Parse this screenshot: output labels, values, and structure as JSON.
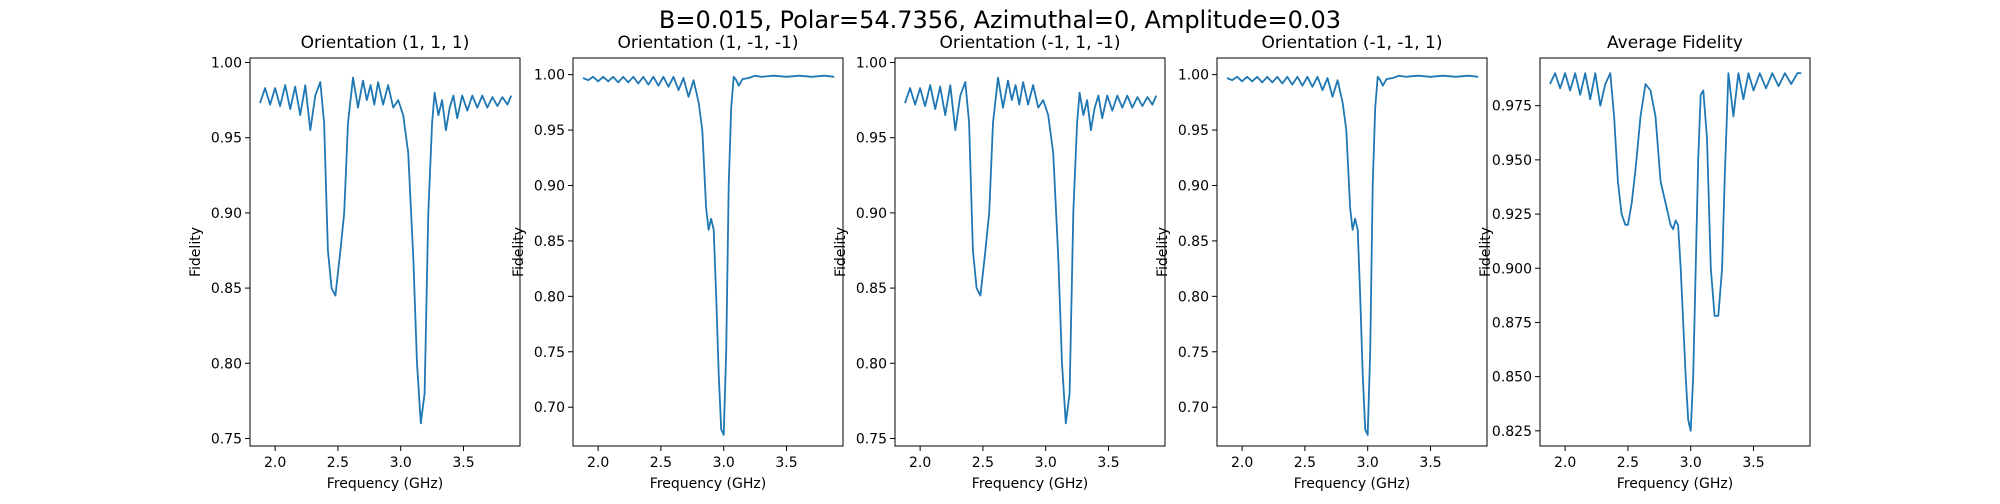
{
  "figure": {
    "suptitle": "B=0.015, Polar=54.7356, Azimuthal=0, Amplitude=0.03",
    "line_color": "#1f77b4"
  },
  "chart_data": [
    {
      "type": "line",
      "title": "Orientation (1, 1, 1)",
      "xlabel": "Frequency (GHz)",
      "ylabel": "Fidelity",
      "xlim": [
        1.8,
        3.95
      ],
      "ylim": [
        0.745,
        1.003
      ],
      "xticks": [
        "2.0",
        "2.5",
        "3.0",
        "3.5"
      ],
      "yticks": [
        "0.75",
        "0.80",
        "0.85",
        "0.90",
        "0.95",
        "1.00"
      ],
      "x": [
        1.88,
        1.92,
        1.96,
        2.0,
        2.04,
        2.08,
        2.12,
        2.16,
        2.2,
        2.24,
        2.28,
        2.32,
        2.36,
        2.39,
        2.42,
        2.45,
        2.48,
        2.5,
        2.52,
        2.55,
        2.58,
        2.62,
        2.66,
        2.7,
        2.73,
        2.76,
        2.79,
        2.82,
        2.86,
        2.9,
        2.94,
        2.98,
        3.02,
        3.06,
        3.1,
        3.13,
        3.16,
        3.19,
        3.22,
        3.25,
        3.27,
        3.3,
        3.33,
        3.36,
        3.39,
        3.42,
        3.45,
        3.49,
        3.53,
        3.57,
        3.61,
        3.65,
        3.69,
        3.73,
        3.77,
        3.81,
        3.85,
        3.88
      ],
      "series": [
        {
          "values": [
            0.973,
            0.983,
            0.972,
            0.983,
            0.971,
            0.985,
            0.969,
            0.984,
            0.965,
            0.985,
            0.955,
            0.978,
            0.987,
            0.96,
            0.875,
            0.85,
            0.845,
            0.86,
            0.875,
            0.9,
            0.96,
            0.99,
            0.97,
            0.988,
            0.975,
            0.985,
            0.972,
            0.987,
            0.972,
            0.985,
            0.97,
            0.975,
            0.965,
            0.94,
            0.87,
            0.8,
            0.76,
            0.78,
            0.9,
            0.96,
            0.98,
            0.965,
            0.975,
            0.955,
            0.97,
            0.978,
            0.963,
            0.978,
            0.968,
            0.978,
            0.97,
            0.978,
            0.97,
            0.977,
            0.971,
            0.977,
            0.972,
            0.978
          ]
        }
      ]
    },
    {
      "type": "line",
      "title": "Orientation (1, -1, -1)",
      "xlabel": "Frequency (GHz)",
      "ylabel": "Fidelity",
      "xlim": [
        1.8,
        3.95
      ],
      "ylim": [
        0.665,
        1.015
      ],
      "xticks": [
        "2.0",
        "2.5",
        "3.0",
        "3.5"
      ],
      "yticks": [
        "0.70",
        "0.75",
        "0.80",
        "0.85",
        "0.90",
        "0.95",
        "1.00"
      ],
      "x": [
        1.88,
        1.92,
        1.96,
        2.0,
        2.04,
        2.08,
        2.12,
        2.16,
        2.2,
        2.24,
        2.28,
        2.32,
        2.36,
        2.4,
        2.44,
        2.48,
        2.52,
        2.56,
        2.6,
        2.64,
        2.68,
        2.72,
        2.76,
        2.8,
        2.83,
        2.86,
        2.88,
        2.9,
        2.92,
        2.94,
        2.96,
        2.98,
        3.0,
        3.02,
        3.04,
        3.06,
        3.08,
        3.1,
        3.12,
        3.15,
        3.2,
        3.25,
        3.3,
        3.4,
        3.5,
        3.6,
        3.7,
        3.8,
        3.88
      ],
      "series": [
        {
          "values": [
            0.997,
            0.995,
            0.998,
            0.994,
            0.998,
            0.994,
            0.998,
            0.993,
            0.998,
            0.993,
            0.998,
            0.992,
            0.998,
            0.991,
            0.998,
            0.99,
            0.998,
            0.989,
            0.998,
            0.986,
            0.997,
            0.98,
            0.995,
            0.975,
            0.95,
            0.88,
            0.86,
            0.87,
            0.86,
            0.8,
            0.73,
            0.68,
            0.675,
            0.75,
            0.9,
            0.97,
            0.998,
            0.995,
            0.99,
            0.996,
            0.997,
            0.999,
            0.998,
            0.999,
            0.998,
            0.999,
            0.998,
            0.999,
            0.998
          ]
        }
      ]
    },
    {
      "type": "line",
      "title": "Orientation (-1, 1, -1)",
      "xlabel": "Frequency (GHz)",
      "ylabel": "Fidelity",
      "xlim": [
        1.8,
        3.95
      ],
      "ylim": [
        0.745,
        1.003
      ],
      "xticks": [
        "2.0",
        "2.5",
        "3.0",
        "3.5"
      ],
      "yticks": [
        "0.75",
        "0.80",
        "0.85",
        "0.90",
        "0.95",
        "1.00"
      ],
      "x": [
        1.88,
        1.92,
        1.96,
        2.0,
        2.04,
        2.08,
        2.12,
        2.16,
        2.2,
        2.24,
        2.28,
        2.32,
        2.36,
        2.39,
        2.42,
        2.45,
        2.48,
        2.5,
        2.52,
        2.55,
        2.58,
        2.62,
        2.66,
        2.7,
        2.73,
        2.76,
        2.79,
        2.82,
        2.86,
        2.9,
        2.94,
        2.98,
        3.02,
        3.06,
        3.1,
        3.13,
        3.16,
        3.19,
        3.22,
        3.25,
        3.27,
        3.3,
        3.33,
        3.36,
        3.39,
        3.42,
        3.45,
        3.49,
        3.53,
        3.57,
        3.61,
        3.65,
        3.69,
        3.73,
        3.77,
        3.81,
        3.85,
        3.88
      ],
      "series": [
        {
          "values": [
            0.973,
            0.983,
            0.972,
            0.983,
            0.971,
            0.985,
            0.969,
            0.984,
            0.965,
            0.985,
            0.955,
            0.978,
            0.987,
            0.96,
            0.875,
            0.85,
            0.845,
            0.86,
            0.875,
            0.9,
            0.96,
            0.99,
            0.97,
            0.988,
            0.975,
            0.985,
            0.972,
            0.987,
            0.972,
            0.985,
            0.97,
            0.975,
            0.965,
            0.94,
            0.87,
            0.8,
            0.76,
            0.78,
            0.9,
            0.96,
            0.98,
            0.965,
            0.975,
            0.955,
            0.97,
            0.978,
            0.963,
            0.978,
            0.968,
            0.978,
            0.97,
            0.978,
            0.97,
            0.977,
            0.971,
            0.977,
            0.972,
            0.978
          ]
        }
      ]
    },
    {
      "type": "line",
      "title": "Orientation (-1, -1, 1)",
      "xlabel": "Frequency (GHz)",
      "ylabel": "Fidelity",
      "xlim": [
        1.8,
        3.95
      ],
      "ylim": [
        0.665,
        1.015
      ],
      "xticks": [
        "2.0",
        "2.5",
        "3.0",
        "3.5"
      ],
      "yticks": [
        "0.70",
        "0.75",
        "0.80",
        "0.85",
        "0.90",
        "0.95",
        "1.00"
      ],
      "x": [
        1.88,
        1.92,
        1.96,
        2.0,
        2.04,
        2.08,
        2.12,
        2.16,
        2.2,
        2.24,
        2.28,
        2.32,
        2.36,
        2.4,
        2.44,
        2.48,
        2.52,
        2.56,
        2.6,
        2.64,
        2.68,
        2.72,
        2.76,
        2.8,
        2.83,
        2.86,
        2.88,
        2.9,
        2.92,
        2.94,
        2.96,
        2.98,
        3.0,
        3.02,
        3.04,
        3.06,
        3.08,
        3.1,
        3.12,
        3.15,
        3.2,
        3.25,
        3.3,
        3.4,
        3.5,
        3.6,
        3.7,
        3.8,
        3.88
      ],
      "series": [
        {
          "values": [
            0.997,
            0.995,
            0.998,
            0.994,
            0.998,
            0.994,
            0.998,
            0.993,
            0.998,
            0.993,
            0.998,
            0.992,
            0.998,
            0.991,
            0.998,
            0.99,
            0.998,
            0.989,
            0.998,
            0.986,
            0.997,
            0.98,
            0.995,
            0.975,
            0.95,
            0.88,
            0.86,
            0.87,
            0.86,
            0.8,
            0.73,
            0.68,
            0.675,
            0.75,
            0.9,
            0.97,
            0.998,
            0.995,
            0.99,
            0.996,
            0.997,
            0.999,
            0.998,
            0.999,
            0.998,
            0.999,
            0.998,
            0.999,
            0.998
          ]
        }
      ]
    },
    {
      "type": "line",
      "title": "Average Fidelity",
      "xlabel": "Frequency (GHz)",
      "ylabel": "Fidelity",
      "xlim": [
        1.8,
        3.95
      ],
      "ylim": [
        0.818,
        0.997
      ],
      "xticks": [
        "2.0",
        "2.5",
        "3.0",
        "3.5"
      ],
      "yticks": [
        "0.825",
        "0.850",
        "0.875",
        "0.900",
        "0.925",
        "0.950",
        "0.975"
      ],
      "x": [
        1.88,
        1.92,
        1.96,
        2.0,
        2.04,
        2.08,
        2.12,
        2.16,
        2.2,
        2.24,
        2.28,
        2.32,
        2.36,
        2.39,
        2.42,
        2.45,
        2.48,
        2.5,
        2.53,
        2.56,
        2.6,
        2.64,
        2.68,
        2.72,
        2.76,
        2.8,
        2.84,
        2.86,
        2.88,
        2.9,
        2.92,
        2.94,
        2.96,
        2.98,
        3.0,
        3.02,
        3.04,
        3.06,
        3.08,
        3.1,
        3.13,
        3.16,
        3.19,
        3.22,
        3.25,
        3.27,
        3.3,
        3.34,
        3.38,
        3.42,
        3.46,
        3.5,
        3.55,
        3.6,
        3.65,
        3.7,
        3.75,
        3.8,
        3.85,
        3.88
      ],
      "series": [
        {
          "values": [
            0.985,
            0.99,
            0.983,
            0.99,
            0.982,
            0.99,
            0.98,
            0.99,
            0.978,
            0.99,
            0.975,
            0.985,
            0.99,
            0.97,
            0.94,
            0.925,
            0.92,
            0.92,
            0.93,
            0.945,
            0.97,
            0.985,
            0.982,
            0.97,
            0.94,
            0.93,
            0.92,
            0.918,
            0.922,
            0.92,
            0.9,
            0.875,
            0.85,
            0.83,
            0.825,
            0.85,
            0.9,
            0.95,
            0.98,
            0.982,
            0.96,
            0.9,
            0.878,
            0.878,
            0.9,
            0.94,
            0.99,
            0.97,
            0.99,
            0.978,
            0.99,
            0.982,
            0.99,
            0.983,
            0.99,
            0.984,
            0.99,
            0.985,
            0.99,
            0.99
          ]
        }
      ]
    }
  ]
}
